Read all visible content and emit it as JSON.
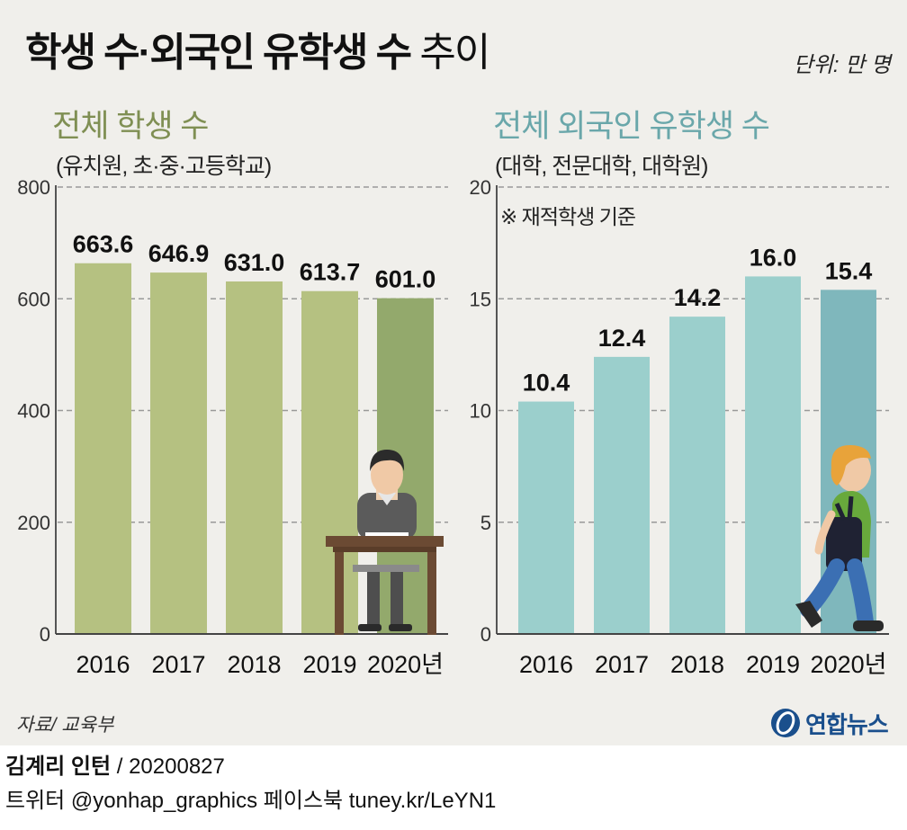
{
  "title": {
    "main": "학생 수·외국인 유학생 수",
    "suffix": "추이"
  },
  "unit": "단위: 만 명",
  "colors": {
    "bg": "#f0efeb",
    "green_bar": "#b5c181",
    "green_bar_last": "#93a96c",
    "green_title": "#7f8f53",
    "teal_bar": "#9bcfcc",
    "teal_bar_last": "#7fb7bc",
    "teal_title": "#6aa7aa",
    "grid": "#999999",
    "brand": "#1a4f8c"
  },
  "chart_data": [
    {
      "type": "bar",
      "title": "전체 학생 수",
      "subtitle": "(유치원, 초·중·고등학교)",
      "categories": [
        "2016",
        "2017",
        "2018",
        "2019",
        "2020년"
      ],
      "values": [
        663.6,
        646.9,
        631.0,
        613.7,
        601.0
      ],
      "value_labels": [
        "663.6",
        "646.9",
        "631.0",
        "613.7",
        "601.0"
      ],
      "yticks": [
        "0",
        "200",
        "400",
        "600",
        "800"
      ],
      "ylim": [
        0,
        800
      ],
      "grid": true,
      "illustration": "student-at-desk"
    },
    {
      "type": "bar",
      "title": "전체 외국인 유학생 수",
      "subtitle": "(대학, 전문대학, 대학원)",
      "note": "※ 재적학생 기준",
      "categories": [
        "2016",
        "2017",
        "2018",
        "2019",
        "2020년"
      ],
      "values": [
        10.4,
        12.4,
        14.2,
        16.0,
        15.4
      ],
      "value_labels": [
        "10.4",
        "12.4",
        "14.2",
        "16.0",
        "15.4"
      ],
      "yticks": [
        "0",
        "5",
        "10",
        "15",
        "20"
      ],
      "ylim": [
        0,
        20
      ],
      "grid": true,
      "illustration": "walking-student-with-backpack"
    }
  ],
  "source": "자료/ 교육부",
  "brand": {
    "name": "연합뉴스",
    "icon": "yonhap-logo-icon"
  },
  "credit": {
    "author": "김계리 인턴",
    "date": "/ 20200827",
    "social": "트위터 @yonhap_graphics  페이스북 tuney.kr/LeYN1"
  }
}
